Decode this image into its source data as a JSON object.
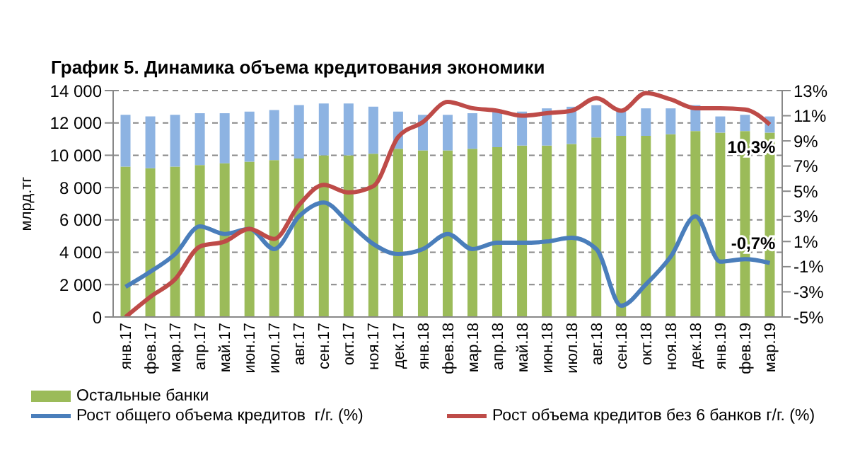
{
  "chart_data": {
    "type": "bar",
    "title": "График 5. Динамика объема кредитования экономики",
    "ylabel": "млрд.тг",
    "stacked": true,
    "categories": [
      "янв.17",
      "фев.17",
      "мар.17",
      "апр.17",
      "май.17",
      "июн.17",
      "июл.17",
      "авг.17",
      "сен.17",
      "окт.17",
      "ноя.17",
      "дек.17",
      "янв.18",
      "фев.18",
      "мар.18",
      "апр.18",
      "май.18",
      "июн.18",
      "июл.18",
      "авг.18",
      "сен.18",
      "окт.18",
      "ноя.18",
      "дек.18",
      "янв.19",
      "фев.19",
      "мар.19"
    ],
    "series": [
      {
        "name": "Остальные банки",
        "color": "#9bbb59",
        "values": [
          9300,
          9200,
          9300,
          9400,
          9500,
          9600,
          9700,
          9800,
          10000,
          10000,
          10100,
          10400,
          10300,
          10300,
          10400,
          10500,
          10600,
          10600,
          10700,
          11100,
          11200,
          11200,
          11300,
          11500,
          11400,
          11500,
          11400
        ]
      },
      {
        "color": "#8db3e2",
        "values": [
          3200,
          3200,
          3200,
          3200,
          3100,
          3100,
          3100,
          3300,
          3200,
          3200,
          2900,
          2300,
          2200,
          2200,
          2200,
          2200,
          2100,
          2300,
          2300,
          2000,
          1500,
          1700,
          1600,
          1600,
          1000,
          1000,
          1000
        ]
      },
      {
        "name": "Рост общего объема кредитов  г/г. (%)",
        "type": "line",
        "axis": "y2",
        "color": "#4a7ebb",
        "values": [
          -2.6,
          -1.4,
          0.0,
          2.2,
          1.6,
          2.0,
          0.4,
          3.0,
          4.1,
          2.5,
          0.8,
          0.0,
          0.4,
          1.6,
          0.4,
          0.9,
          0.9,
          1.0,
          1.3,
          0.4,
          -4.1,
          -2.4,
          -0.2,
          3.0,
          -0.6,
          -0.4,
          -0.7
        ],
        "value_labels": [
          null,
          null,
          null,
          null,
          null,
          null,
          null,
          null,
          null,
          null,
          null,
          null,
          null,
          null,
          null,
          null,
          null,
          null,
          null,
          null,
          null,
          null,
          null,
          null,
          null,
          null,
          "-0,7%"
        ]
      },
      {
        "name": "Рост объема кредитов без 6 банков г/г. (%)",
        "type": "line",
        "axis": "y2",
        "color": "#be4b48",
        "values": [
          -5.0,
          -3.4,
          -2.0,
          0.6,
          1.0,
          2.0,
          1.2,
          3.9,
          5.5,
          4.9,
          5.4,
          9.3,
          10.5,
          12.1,
          11.6,
          11.4,
          11.0,
          11.2,
          11.4,
          12.4,
          11.4,
          12.8,
          12.3,
          11.6,
          11.6,
          11.5,
          10.3
        ],
        "value_labels": [
          null,
          null,
          null,
          null,
          null,
          null,
          null,
          null,
          null,
          null,
          null,
          null,
          null,
          null,
          null,
          null,
          null,
          null,
          null,
          null,
          null,
          null,
          null,
          null,
          null,
          null,
          "10,3%"
        ]
      }
    ],
    "ylim": [
      0,
      14000
    ],
    "yticks": [
      {
        "value": 0,
        "label": "0"
      },
      {
        "value": 2000,
        "label": "2 000"
      },
      {
        "value": 4000,
        "label": "4 000"
      },
      {
        "value": 6000,
        "label": "6 000"
      },
      {
        "value": 8000,
        "label": "8 000"
      },
      {
        "value": 10000,
        "label": "10 000"
      },
      {
        "value": 12000,
        "label": "12 000"
      },
      {
        "value": 14000,
        "label": "14 000"
      }
    ],
    "y2lim": [
      -5,
      13
    ],
    "y2ticks": [
      {
        "value": -5,
        "label": "-5%"
      },
      {
        "value": -3,
        "label": "-3%"
      },
      {
        "value": -1,
        "label": "-1%"
      },
      {
        "value": 1,
        "label": "1%"
      },
      {
        "value": 3,
        "label": "3%"
      },
      {
        "value": 5,
        "label": "5%"
      },
      {
        "value": 7,
        "label": "7%"
      },
      {
        "value": 9,
        "label": "9%"
      },
      {
        "value": 11,
        "label": "11%"
      },
      {
        "value": 13,
        "label": "13%"
      }
    ],
    "grid": "y",
    "legend": "bottom",
    "marker": "none",
    "line_style": "solid"
  }
}
